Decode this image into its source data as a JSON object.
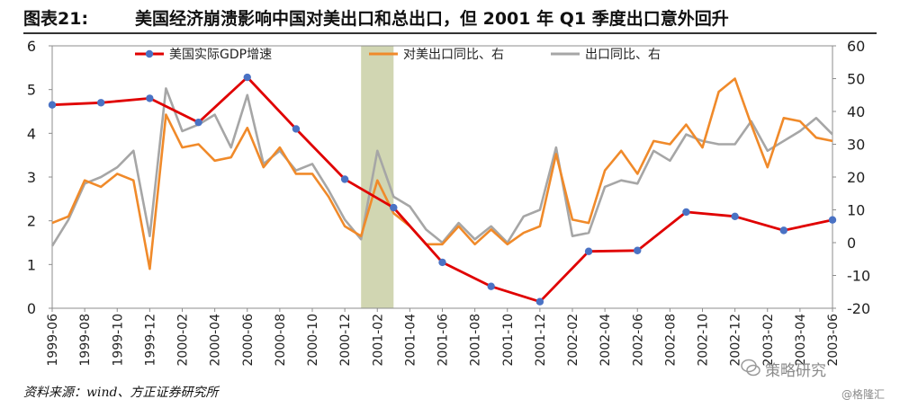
{
  "header": {
    "figure_label": "图表21:",
    "title": "美国经济崩溃影响中国对美出口和总出口，但 2001 年 Q1 季度出口意外回升"
  },
  "footer": {
    "source": "资料来源：wind、方正证券研究所"
  },
  "watermark": {
    "brand": "策略研究",
    "site": "@格隆汇"
  },
  "colors": {
    "gdp": "#e00000",
    "gdp_marker": "#4a72c4",
    "us_exports": "#f08a2a",
    "total_exports": "#a6a6a6",
    "highlight": "#c9cfa5"
  },
  "chart_data": {
    "type": "line",
    "x_tick_labels": [
      "1999-06",
      "1999-08",
      "1999-10",
      "1999-12",
      "2000-02",
      "2000-04",
      "2000-06",
      "2000-08",
      "2000-10",
      "2000-12",
      "2001-02",
      "2001-04",
      "2001-06",
      "2001-08",
      "2001-10",
      "2001-12",
      "2002-02",
      "2002-04",
      "2002-06",
      "2002-08",
      "2002-10",
      "2002-12",
      "2003-02",
      "2003-04",
      "2003-06"
    ],
    "highlight_band": {
      "from": "2001-01",
      "to": "2001-03"
    },
    "y_left": {
      "min": 0,
      "max": 6,
      "step": 1
    },
    "y_right": {
      "min": -20,
      "max": 60,
      "step": 10
    },
    "legend": [
      "美国实际GDP增速",
      "对美出口同比、右",
      "出口同比、右"
    ],
    "series": [
      {
        "name": "美国实际GDP增速",
        "axis": "left",
        "dates": [
          "1999-06",
          "1999-09",
          "1999-12",
          "2000-03",
          "2000-06",
          "2000-09",
          "2000-12",
          "2001-03",
          "2001-06",
          "2001-09",
          "2001-12",
          "2002-03",
          "2002-06",
          "2002-09",
          "2002-12",
          "2003-03",
          "2003-06"
        ],
        "values": [
          4.65,
          4.7,
          4.8,
          4.25,
          5.28,
          4.1,
          2.95,
          2.3,
          1.05,
          0.5,
          0.15,
          1.3,
          1.32,
          2.2,
          2.1,
          1.78,
          2.02
        ]
      },
      {
        "name": "对美出口同比、右",
        "axis": "right",
        "dates": [
          "1999-06",
          "1999-07",
          "1999-08",
          "1999-09",
          "1999-10",
          "1999-11",
          "1999-12",
          "2000-01",
          "2000-02",
          "2000-03",
          "2000-04",
          "2000-05",
          "2000-06",
          "2000-07",
          "2000-08",
          "2000-09",
          "2000-10",
          "2000-11",
          "2000-12",
          "2001-01",
          "2001-02",
          "2001-03",
          "2001-04",
          "2001-05",
          "2001-06",
          "2001-07",
          "2001-08",
          "2001-09",
          "2001-10",
          "2001-11",
          "2001-12",
          "2002-01",
          "2002-02",
          "2002-03",
          "2002-04",
          "2002-05",
          "2002-06",
          "2002-07",
          "2002-08",
          "2002-09",
          "2002-10",
          "2002-11",
          "2002-12",
          "2003-01",
          "2003-02",
          "2003-03",
          "2003-04",
          "2003-05",
          "2003-06"
        ],
        "values": [
          6,
          8,
          19,
          17,
          21,
          19,
          -8,
          39,
          29,
          30,
          25,
          26,
          35,
          23,
          29,
          21,
          21,
          14,
          5,
          2,
          19,
          9,
          5,
          -0.5,
          -0.5,
          5,
          -0.5,
          4,
          -0.5,
          3,
          5,
          27,
          7,
          6,
          22,
          28,
          21,
          31,
          30,
          36,
          29,
          46,
          50,
          36,
          23,
          38,
          37,
          32,
          31
        ]
      },
      {
        "name": "出口同比、右",
        "axis": "right",
        "dates": [
          "1999-06",
          "1999-07",
          "1999-08",
          "1999-09",
          "1999-10",
          "1999-11",
          "1999-12",
          "2000-01",
          "2000-02",
          "2000-03",
          "2000-04",
          "2000-05",
          "2000-06",
          "2000-07",
          "2000-08",
          "2000-09",
          "2000-10",
          "2000-11",
          "2000-12",
          "2001-01",
          "2001-02",
          "2001-03",
          "2001-04",
          "2001-05",
          "2001-06",
          "2001-07",
          "2001-08",
          "2001-09",
          "2001-10",
          "2001-11",
          "2001-12",
          "2002-01",
          "2002-02",
          "2002-03",
          "2002-04",
          "2002-05",
          "2002-06",
          "2002-07",
          "2002-08",
          "2002-09",
          "2002-10",
          "2002-11",
          "2002-12",
          "2003-01",
          "2003-02",
          "2003-04",
          "2003-05",
          "2003-06"
        ],
        "values": [
          -1,
          7,
          18,
          20,
          23,
          28,
          2,
          47,
          34,
          36,
          39,
          29,
          45,
          24,
          28,
          22,
          24,
          16,
          7,
          1,
          28,
          14,
          11,
          4,
          0,
          6,
          1,
          5,
          0,
          8,
          10,
          29,
          2,
          3,
          17,
          19,
          18,
          28,
          25,
          33,
          31,
          30,
          30,
          37,
          28,
          34,
          38,
          33
        ]
      }
    ]
  }
}
